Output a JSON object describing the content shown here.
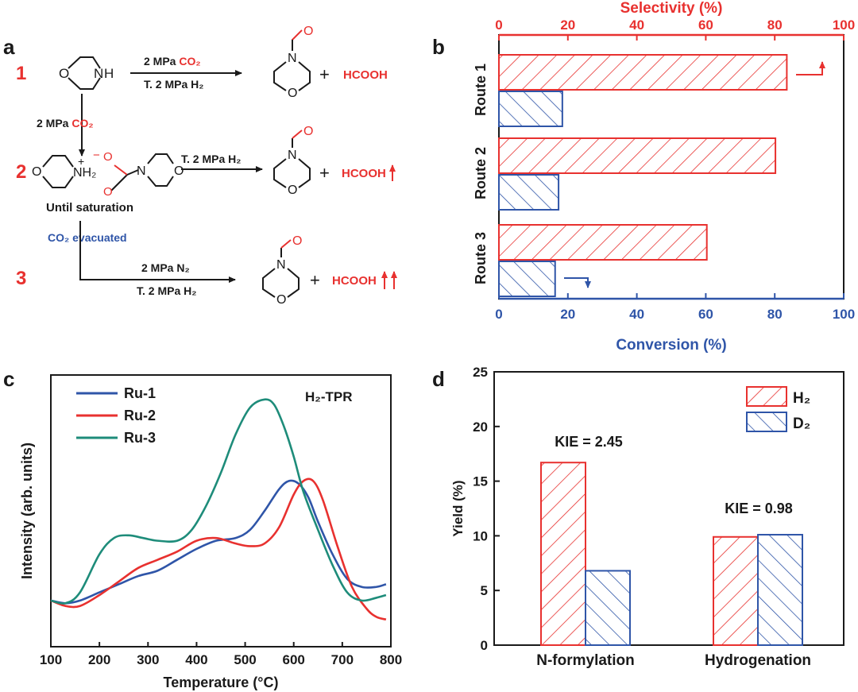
{
  "colors": {
    "red": "#e8312f",
    "blue": "#2f55a8",
    "teal": "#1e8c7a",
    "black": "#1a1a1a"
  },
  "panel_labels": [
    "a",
    "b",
    "c",
    "d"
  ],
  "scheme": {
    "route_numbers": [
      "1",
      "2",
      "3"
    ],
    "nh_label": "H",
    "ammonium_label": "NH₂",
    "plus_charge": "+",
    "minus_charge": "−",
    "o_label": "O",
    "n_label": "N",
    "route1_top": "2 MPa",
    "route1_top_co2": "CO₂",
    "route1_bottom": "T. 2 MPa H₂",
    "down_arrow_label": "2 MPa",
    "down_arrow_co2": "CO₂",
    "route2_top": "T. 2 MPa H₂",
    "until": "Until saturation",
    "evac_co2": "CO₂",
    "evac_text": " evacuated",
    "route3_top": "2 MPa N₂",
    "route3_bottom": "T. 2 MPa H₂",
    "plus": "+",
    "hcooh": "HCOOH"
  },
  "chart_data": [
    {
      "panel": "b",
      "type": "bar",
      "orientation": "horizontal",
      "categories": [
        "Route 1",
        "Route 2",
        "Route 3"
      ],
      "series": [
        {
          "name": "Selectivity (%)",
          "values": [
            83.5,
            80.2,
            60.3
          ],
          "axis": "top",
          "color": "#e8312f",
          "hatch": "forward"
        },
        {
          "name": "Conversion (%)",
          "values": [
            18.4,
            17.3,
            16.3
          ],
          "axis": "bottom",
          "color": "#2f55a8",
          "hatch": "backward"
        }
      ],
      "top_axis": {
        "label": "Selectivity (%)",
        "lim": [
          0,
          100
        ],
        "ticks": [
          0,
          20,
          40,
          60,
          80,
          100
        ]
      },
      "bottom_axis": {
        "label": "Conversion (%)",
        "lim": [
          0,
          100
        ],
        "ticks": [
          0,
          20,
          40,
          60,
          80,
          100
        ]
      }
    },
    {
      "panel": "c",
      "type": "line",
      "annotation": "H₂-TPR",
      "xlabel": "Temperature (°C)",
      "ylabel": "Intensity (arb. units)",
      "xlim": [
        100,
        800
      ],
      "xticks": [
        100,
        200,
        300,
        400,
        500,
        600,
        700,
        800
      ],
      "ylim": [
        0,
        1
      ],
      "yticks_shown": false,
      "legend": "top-left",
      "series": [
        {
          "name": "Ru-1",
          "color": "#2f55a8",
          "x": [
            100,
            130,
            160,
            200,
            240,
            280,
            320,
            360,
            400,
            440,
            480,
            510,
            540,
            570,
            590,
            610,
            630,
            650,
            680,
            710,
            740,
            770,
            790
          ],
          "y": [
            0.17,
            0.16,
            0.17,
            0.2,
            0.23,
            0.26,
            0.28,
            0.32,
            0.36,
            0.39,
            0.4,
            0.43,
            0.5,
            0.58,
            0.61,
            0.6,
            0.55,
            0.46,
            0.34,
            0.25,
            0.22,
            0.22,
            0.23
          ]
        },
        {
          "name": "Ru-2",
          "color": "#e8312f",
          "x": [
            100,
            130,
            160,
            200,
            240,
            280,
            320,
            360,
            400,
            440,
            480,
            510,
            540,
            570,
            600,
            620,
            640,
            660,
            690,
            720,
            750,
            770,
            790
          ],
          "y": [
            0.17,
            0.15,
            0.15,
            0.19,
            0.24,
            0.29,
            0.32,
            0.35,
            0.39,
            0.4,
            0.38,
            0.37,
            0.38,
            0.44,
            0.56,
            0.61,
            0.61,
            0.54,
            0.37,
            0.22,
            0.14,
            0.11,
            0.1
          ]
        },
        {
          "name": "Ru-3",
          "color": "#1e8c7a",
          "x": [
            100,
            130,
            160,
            200,
            230,
            260,
            290,
            320,
            360,
            390,
            420,
            450,
            480,
            510,
            540,
            560,
            580,
            600,
            620,
            650,
            680,
            710,
            740,
            770,
            790
          ],
          "y": [
            0.17,
            0.16,
            0.2,
            0.34,
            0.4,
            0.41,
            0.4,
            0.39,
            0.39,
            0.43,
            0.52,
            0.64,
            0.78,
            0.88,
            0.91,
            0.89,
            0.81,
            0.7,
            0.57,
            0.43,
            0.3,
            0.2,
            0.17,
            0.18,
            0.19
          ]
        }
      ]
    },
    {
      "panel": "d",
      "type": "bar",
      "categories": [
        "N-formylation",
        "Hydrogenation"
      ],
      "series": [
        {
          "name": "H₂",
          "values": [
            16.7,
            9.9
          ],
          "color": "#e8312f",
          "hatch": "forward"
        },
        {
          "name": "D₂",
          "values": [
            6.8,
            10.1
          ],
          "color": "#2f55a8",
          "hatch": "backward"
        }
      ],
      "annotations": [
        "KIE = 2.45",
        "KIE = 0.98"
      ],
      "ylabel": "Yield (%)",
      "ylim": [
        0,
        25
      ],
      "yticks": [
        0,
        5,
        10,
        15,
        20,
        25
      ],
      "legend": "top-right"
    }
  ]
}
